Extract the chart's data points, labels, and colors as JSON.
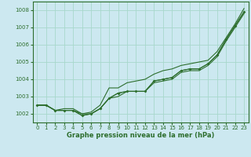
{
  "background_color": "#cce8f0",
  "grid_color": "#a8d8cc",
  "line_color": "#2d6e2d",
  "xlabel": "Graphe pression niveau de la mer (hPa)",
  "ylim": [
    1001.5,
    1008.5
  ],
  "xlim": [
    -0.5,
    23.5
  ],
  "yticks": [
    1002,
    1003,
    1004,
    1005,
    1006,
    1007,
    1008
  ],
  "xticks": [
    0,
    1,
    2,
    3,
    4,
    5,
    6,
    7,
    8,
    9,
    10,
    11,
    12,
    13,
    14,
    15,
    16,
    17,
    18,
    19,
    20,
    21,
    22,
    23
  ],
  "series_with_markers": [
    [
      1002.5,
      1002.5,
      1002.2,
      1002.2,
      1002.2,
      1001.9,
      1002.0,
      1002.3,
      1002.9,
      1003.2,
      1003.3,
      1003.3,
      1003.3,
      1003.9,
      1004.0,
      1004.1,
      1004.5,
      1004.6,
      1004.6,
      1004.9,
      1005.4,
      1006.3,
      1007.1,
      1007.9
    ],
    [
      1002.5,
      1002.5,
      1002.2,
      1002.2,
      1002.2,
      1001.9,
      1002.0,
      1002.3,
      1002.9,
      1003.2,
      1003.3,
      1003.3,
      1003.3,
      1003.9,
      1004.0,
      1004.1,
      1004.5,
      1004.6,
      1004.6,
      1004.9,
      1005.4,
      1006.3,
      1007.1,
      1007.9
    ]
  ],
  "series_no_markers_low": [
    [
      1002.5,
      1002.5,
      1002.2,
      1002.2,
      1002.2,
      1002.0,
      1002.0,
      1002.3,
      1002.9,
      1003.0,
      1003.3,
      1003.3,
      1003.3,
      1003.8,
      1003.9,
      1004.0,
      1004.4,
      1004.5,
      1004.5,
      1004.8,
      1005.3,
      1006.2,
      1007.0,
      1007.8
    ]
  ],
  "series_high": [
    [
      1002.5,
      1002.5,
      1002.2,
      1002.3,
      1002.3,
      1002.0,
      1002.1,
      1002.5,
      1003.5,
      1003.5,
      1003.8,
      1003.9,
      1004.0,
      1004.3,
      1004.5,
      1004.6,
      1004.8,
      1004.9,
      1005.0,
      1005.1,
      1005.6,
      1006.4,
      1007.2,
      1008.1
    ]
  ]
}
